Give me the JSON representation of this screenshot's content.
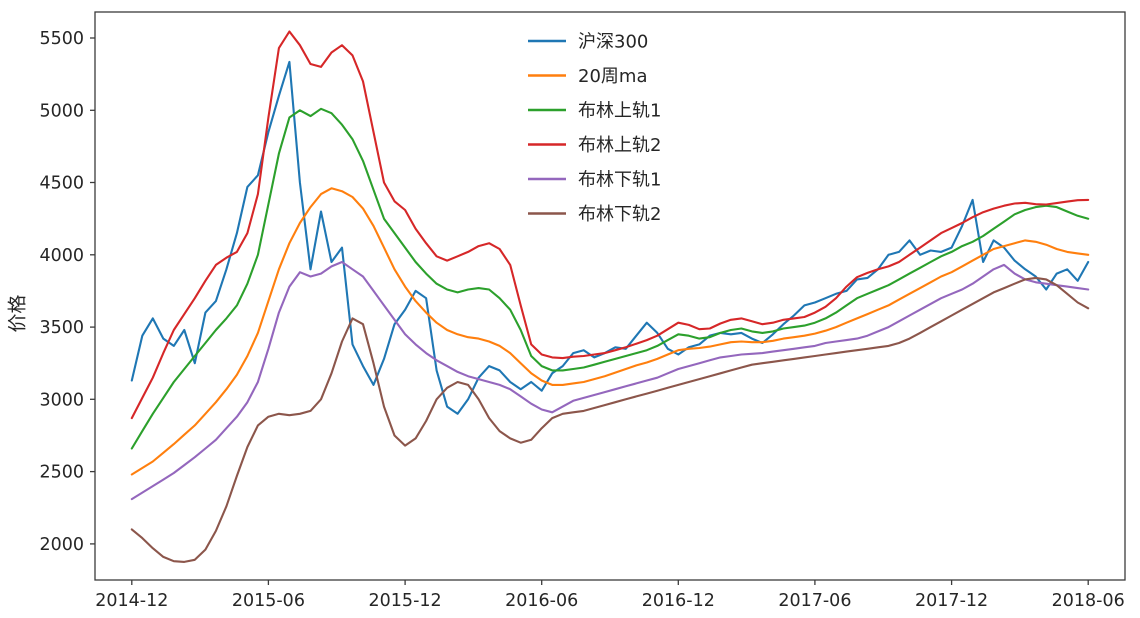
{
  "chart_data": {
    "type": "line",
    "title": "",
    "xlabel": "",
    "ylabel": "价格",
    "x_unit": "weeks since 2014-12 (weekly data)",
    "grid": false,
    "legend_position": "upper center",
    "xlim": [
      -7,
      189
    ],
    "ylim": [
      1750,
      5680
    ],
    "yticks": [
      2000,
      2500,
      3000,
      3500,
      4000,
      4500,
      5000,
      5500
    ],
    "xticks": [
      {
        "pos": 0,
        "label": "2014-12"
      },
      {
        "pos": 26,
        "label": "2015-06"
      },
      {
        "pos": 52,
        "label": "2015-12"
      },
      {
        "pos": 78,
        "label": "2016-06"
      },
      {
        "pos": 104,
        "label": "2016-12"
      },
      {
        "pos": 130,
        "label": "2017-06"
      },
      {
        "pos": 156,
        "label": "2017-12"
      },
      {
        "pos": 182,
        "label": "2018-06"
      }
    ],
    "x": [
      0,
      2,
      4,
      6,
      8,
      10,
      12,
      14,
      16,
      18,
      20,
      22,
      24,
      26,
      28,
      30,
      32,
      34,
      36,
      38,
      40,
      42,
      44,
      46,
      48,
      50,
      52,
      54,
      56,
      58,
      60,
      62,
      64,
      66,
      68,
      70,
      72,
      74,
      76,
      78,
      80,
      82,
      84,
      86,
      88,
      90,
      92,
      94,
      96,
      98,
      100,
      102,
      104,
      106,
      108,
      110,
      112,
      114,
      116,
      118,
      120,
      122,
      124,
      126,
      128,
      130,
      132,
      134,
      136,
      138,
      140,
      142,
      144,
      146,
      148,
      150,
      152,
      154,
      156,
      158,
      160,
      162,
      164,
      166,
      168,
      170,
      172,
      174,
      176,
      178,
      180,
      182
    ],
    "series": [
      {
        "name": "沪深300",
        "color": "#1f77b4",
        "values": [
          3130,
          3440,
          3560,
          3420,
          3370,
          3480,
          3250,
          3600,
          3680,
          3900,
          4150,
          4470,
          4550,
          4850,
          5100,
          5335,
          4500,
          3900,
          4300,
          3950,
          4050,
          3380,
          3230,
          3100,
          3280,
          3520,
          3620,
          3750,
          3700,
          3200,
          2950,
          2900,
          3000,
          3150,
          3230,
          3200,
          3120,
          3070,
          3120,
          3060,
          3180,
          3230,
          3320,
          3340,
          3290,
          3320,
          3360,
          3350,
          3440,
          3530,
          3460,
          3350,
          3310,
          3360,
          3380,
          3440,
          3460,
          3450,
          3460,
          3420,
          3390,
          3450,
          3520,
          3580,
          3650,
          3670,
          3700,
          3730,
          3750,
          3830,
          3840,
          3900,
          4000,
          4020,
          4100,
          4000,
          4030,
          4020,
          4050,
          4200,
          4380,
          3950,
          4100,
          4050,
          3960,
          3900,
          3850,
          3760,
          3870,
          3900,
          3820,
          3950
        ]
      },
      {
        "name": "20周ma",
        "color": "#ff7f0e",
        "values": [
          2480,
          2525,
          2570,
          2630,
          2690,
          2755,
          2820,
          2900,
          2980,
          3070,
          3170,
          3300,
          3460,
          3680,
          3900,
          4080,
          4220,
          4330,
          4420,
          4460,
          4440,
          4400,
          4320,
          4200,
          4050,
          3900,
          3780,
          3680,
          3600,
          3530,
          3480,
          3450,
          3430,
          3420,
          3400,
          3370,
          3320,
          3250,
          3180,
          3130,
          3100,
          3100,
          3110,
          3120,
          3140,
          3160,
          3185,
          3210,
          3235,
          3255,
          3280,
          3310,
          3340,
          3350,
          3355,
          3365,
          3380,
          3395,
          3400,
          3395,
          3395,
          3405,
          3420,
          3430,
          3440,
          3455,
          3475,
          3500,
          3530,
          3560,
          3590,
          3620,
          3650,
          3690,
          3730,
          3770,
          3810,
          3850,
          3880,
          3920,
          3960,
          4000,
          4040,
          4060,
          4080,
          4100,
          4090,
          4070,
          4040,
          4020,
          4010,
          4000
        ]
      },
      {
        "name": "布林上轨1",
        "color": "#2ca02c",
        "values": [
          2660,
          2780,
          2900,
          3010,
          3120,
          3210,
          3300,
          3390,
          3480,
          3560,
          3650,
          3800,
          4000,
          4350,
          4700,
          4950,
          5000,
          4960,
          5010,
          4980,
          4900,
          4800,
          4650,
          4450,
          4250,
          4150,
          4050,
          3950,
          3870,
          3800,
          3760,
          3740,
          3760,
          3770,
          3760,
          3700,
          3620,
          3480,
          3300,
          3230,
          3200,
          3200,
          3210,
          3220,
          3240,
          3260,
          3280,
          3300,
          3320,
          3340,
          3370,
          3410,
          3450,
          3440,
          3420,
          3430,
          3460,
          3480,
          3490,
          3470,
          3460,
          3470,
          3490,
          3500,
          3510,
          3530,
          3560,
          3600,
          3650,
          3700,
          3730,
          3760,
          3790,
          3830,
          3870,
          3910,
          3950,
          3990,
          4020,
          4060,
          4090,
          4130,
          4180,
          4230,
          4280,
          4310,
          4330,
          4340,
          4330,
          4300,
          4270,
          4250
        ]
      },
      {
        "name": "布林上轨2",
        "color": "#d62728",
        "values": [
          2870,
          3010,
          3150,
          3320,
          3480,
          3590,
          3700,
          3820,
          3930,
          3980,
          4020,
          4150,
          4420,
          4950,
          5430,
          5545,
          5450,
          5320,
          5300,
          5400,
          5450,
          5380,
          5200,
          4850,
          4500,
          4370,
          4310,
          4180,
          4080,
          3990,
          3960,
          3990,
          4020,
          4060,
          4080,
          4040,
          3930,
          3650,
          3380,
          3310,
          3290,
          3285,
          3295,
          3300,
          3310,
          3320,
          3340,
          3360,
          3385,
          3410,
          3440,
          3485,
          3530,
          3515,
          3485,
          3490,
          3525,
          3550,
          3560,
          3540,
          3520,
          3530,
          3550,
          3560,
          3570,
          3600,
          3640,
          3700,
          3780,
          3845,
          3875,
          3900,
          3920,
          3950,
          4000,
          4050,
          4100,
          4150,
          4185,
          4220,
          4260,
          4295,
          4320,
          4340,
          4355,
          4360,
          4350,
          4348,
          4358,
          4368,
          4378,
          4380
        ]
      },
      {
        "name": "布林下轨1",
        "color": "#9467bd",
        "values": [
          2310,
          2355,
          2400,
          2445,
          2490,
          2545,
          2600,
          2660,
          2720,
          2800,
          2880,
          2980,
          3120,
          3350,
          3600,
          3780,
          3880,
          3850,
          3870,
          3920,
          3950,
          3900,
          3850,
          3750,
          3650,
          3550,
          3450,
          3380,
          3320,
          3270,
          3230,
          3190,
          3160,
          3140,
          3120,
          3100,
          3070,
          3020,
          2970,
          2930,
          2910,
          2950,
          2990,
          3010,
          3030,
          3050,
          3070,
          3090,
          3110,
          3130,
          3150,
          3180,
          3210,
          3230,
          3250,
          3270,
          3290,
          3300,
          3310,
          3315,
          3320,
          3330,
          3340,
          3350,
          3360,
          3370,
          3390,
          3400,
          3410,
          3420,
          3440,
          3470,
          3500,
          3540,
          3580,
          3620,
          3660,
          3700,
          3730,
          3760,
          3800,
          3850,
          3900,
          3930,
          3870,
          3830,
          3810,
          3800,
          3790,
          3780,
          3770,
          3760
        ]
      },
      {
        "name": "布林下轨2",
        "color": "#8c564b",
        "values": [
          2100,
          2040,
          1970,
          1910,
          1880,
          1875,
          1890,
          1960,
          2090,
          2260,
          2470,
          2670,
          2820,
          2880,
          2900,
          2890,
          2900,
          2920,
          3000,
          3180,
          3400,
          3560,
          3520,
          3250,
          2950,
          2750,
          2680,
          2730,
          2850,
          3000,
          3080,
          3120,
          3100,
          3000,
          2870,
          2780,
          2730,
          2700,
          2720,
          2800,
          2870,
          2900,
          2910,
          2920,
          2940,
          2960,
          2980,
          3000,
          3020,
          3040,
          3060,
          3080,
          3100,
          3120,
          3140,
          3160,
          3180,
          3200,
          3220,
          3240,
          3250,
          3260,
          3270,
          3280,
          3290,
          3300,
          3310,
          3320,
          3330,
          3340,
          3350,
          3360,
          3370,
          3390,
          3420,
          3460,
          3500,
          3540,
          3580,
          3620,
          3660,
          3700,
          3740,
          3770,
          3800,
          3830,
          3840,
          3830,
          3790,
          3730,
          3670,
          3630
        ]
      }
    ]
  }
}
